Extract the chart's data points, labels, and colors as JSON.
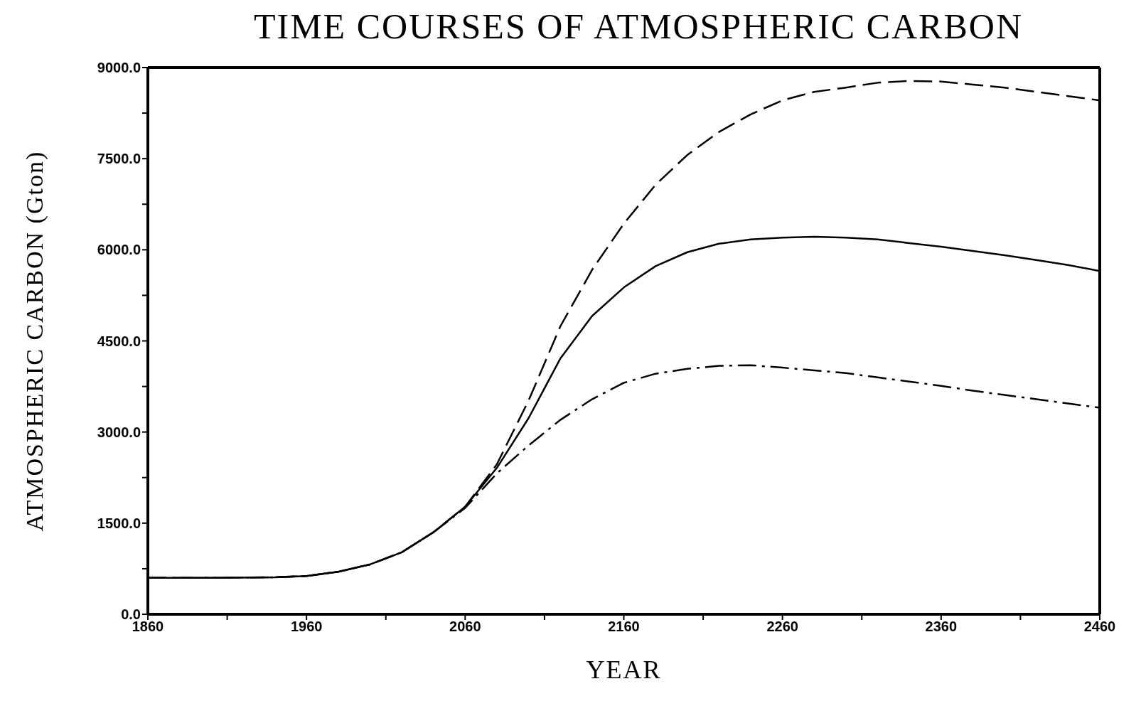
{
  "chart_data": {
    "type": "line",
    "title": "TIME COURSES OF ATMOSPHERIC CARBON",
    "xlabel": "YEAR",
    "ylabel": "ATMOSPHERIC CARBON (Gton)",
    "x": [
      1860,
      1900,
      1940,
      1960,
      1980,
      2000,
      2020,
      2040,
      2060,
      2080,
      2100,
      2120,
      2140,
      2160,
      2180,
      2200,
      2220,
      2240,
      2260,
      2280,
      2300,
      2320,
      2340,
      2360,
      2380,
      2400,
      2420,
      2440,
      2460
    ],
    "series": [
      {
        "color": "#000000",
        "line_style": "dashed",
        "values": [
          600,
          600,
          610,
          630,
          700,
          820,
          1020,
          1350,
          1770,
          2470,
          3520,
          4740,
          5670,
          6430,
          7070,
          7560,
          7940,
          8230,
          8460,
          8600,
          8670,
          8750,
          8780,
          8770,
          8720,
          8670,
          8600,
          8530,
          8460
        ]
      },
      {
        "color": "#000000",
        "line_style": "solid",
        "values": [
          600,
          600,
          610,
          630,
          700,
          820,
          1020,
          1350,
          1770,
          2410,
          3230,
          4210,
          4910,
          5380,
          5730,
          5960,
          6100,
          6170,
          6200,
          6215,
          6200,
          6170,
          6110,
          6050,
          5980,
          5910,
          5830,
          5750,
          5650
        ]
      },
      {
        "color": "#000000",
        "line_style": "dashdot",
        "values": [
          600,
          600,
          610,
          630,
          700,
          820,
          1020,
          1350,
          1750,
          2320,
          2780,
          3200,
          3540,
          3810,
          3960,
          4040,
          4090,
          4100,
          4060,
          4015,
          3970,
          3900,
          3830,
          3760,
          3680,
          3610,
          3540,
          3470,
          3400
        ]
      }
    ],
    "xlim": [
      1860,
      2460
    ],
    "xticks": [
      1860,
      {
        "value": 1910,
        "label": null
      },
      1960,
      {
        "value": 2010,
        "label": null
      },
      2060,
      {
        "value": 2110,
        "label": null
      },
      2160,
      {
        "value": 2210,
        "label": null
      },
      2260,
      {
        "value": 2310,
        "label": null
      },
      2360,
      {
        "value": 2410,
        "label": null
      },
      2460
    ],
    "ylim": [
      0,
      9000
    ],
    "yticks": [
      {
        "value": 0,
        "label": "0.0"
      },
      {
        "value": 750,
        "label": null
      },
      {
        "value": 1500,
        "label": "1500.0"
      },
      {
        "value": 2250,
        "label": null
      },
      {
        "value": 3000,
        "label": "3000.0"
      },
      {
        "value": 3750,
        "label": null
      },
      {
        "value": 4500,
        "label": "4500.0"
      },
      {
        "value": 5250,
        "label": null
      },
      {
        "value": 6000,
        "label": "6000.0"
      },
      {
        "value": 6750,
        "label": null
      },
      {
        "value": 7500,
        "label": "7500.0"
      },
      {
        "value": 8250,
        "label": null
      },
      {
        "value": 9000,
        "label": "9000.0"
      }
    ],
    "grid": false,
    "marker": "none"
  }
}
